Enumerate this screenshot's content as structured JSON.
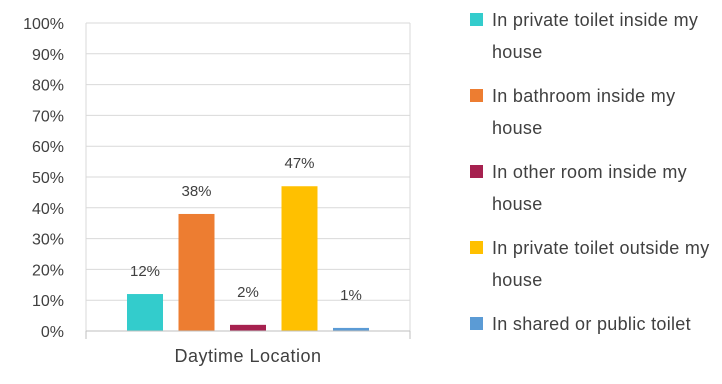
{
  "chart_data": {
    "type": "bar",
    "categories": [
      "Daytime Location"
    ],
    "series": [
      {
        "name": "In private toilet inside my house",
        "values": [
          12
        ],
        "label": "12%",
        "color": "#33CCCC"
      },
      {
        "name": "In bathroom inside my house",
        "values": [
          38
        ],
        "label": "38%",
        "color": "#ED7D31"
      },
      {
        "name": "In other room inside my house",
        "values": [
          2
        ],
        "label": "2%",
        "color": "#A6214F"
      },
      {
        "name": "In private toilet outside my house",
        "values": [
          47
        ],
        "label": "47%",
        "color": "#FFC000"
      },
      {
        "name": "In shared or public toilet",
        "values": [
          1
        ],
        "label": "1%",
        "color": "#5B9BD5"
      }
    ],
    "ylim": [
      0,
      100
    ],
    "yticks": [
      "0%",
      "10%",
      "20%",
      "30%",
      "40%",
      "50%",
      "60%",
      "70%",
      "80%",
      "90%",
      "100%"
    ],
    "grid": true,
    "legend_position": "right"
  }
}
